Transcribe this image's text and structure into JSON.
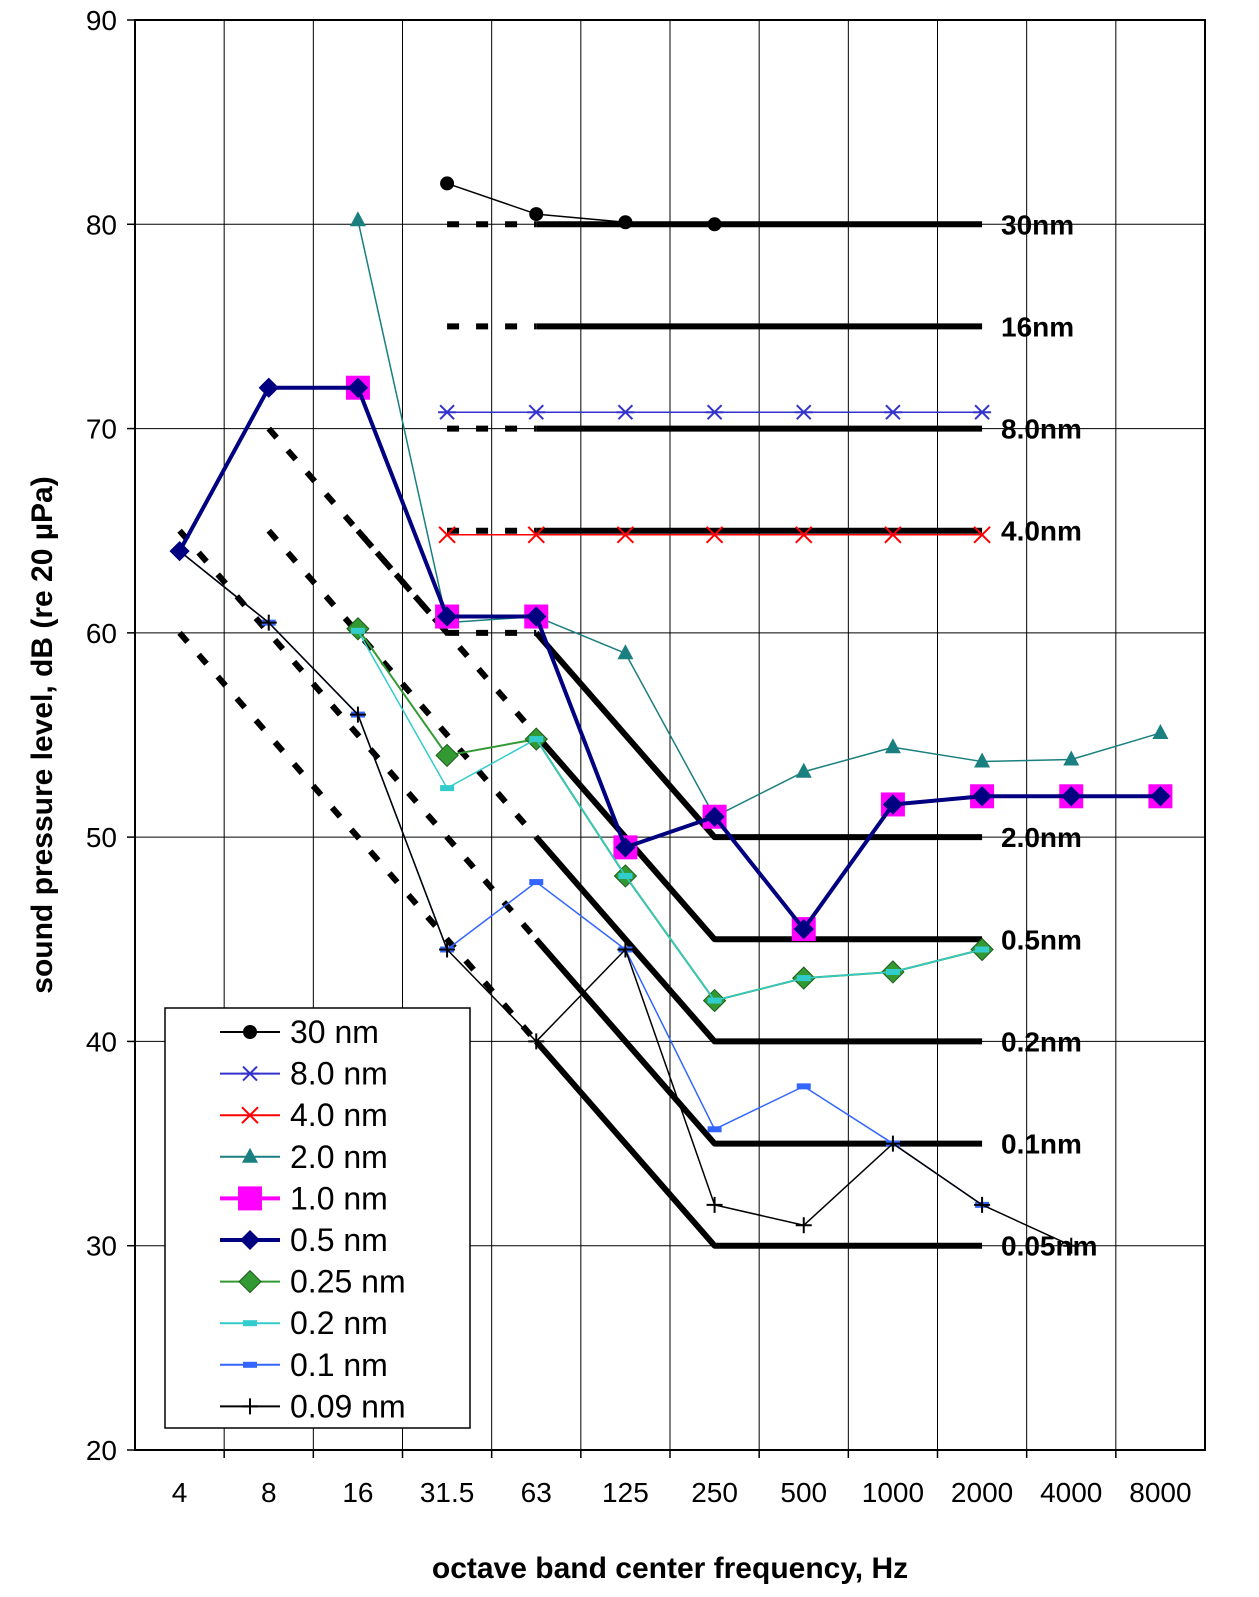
{
  "chart_data": {
    "type": "line",
    "title": "",
    "xlabel": "octave band center frequency, Hz",
    "ylabel": "sound pressure level, dB (re 20 µPa)",
    "ylim": [
      20,
      90
    ],
    "yticks": [
      "20",
      "30",
      "40",
      "50",
      "60",
      "70",
      "80",
      "90"
    ],
    "categories": [
      "4",
      "8",
      "16",
      "31.5",
      "63",
      "125",
      "250",
      "500",
      "1000",
      "2000",
      "4000",
      "8000"
    ],
    "grid": true,
    "legend_position": "bottom-left",
    "series": [
      {
        "name": "30 nm",
        "color": "#000000",
        "marker": "circle",
        "points": [
          [
            3,
            82
          ],
          [
            4,
            80.5
          ],
          [
            5,
            80.1
          ],
          [
            6,
            80
          ]
        ]
      },
      {
        "name": "8.0 nm",
        "color": "#3333cc",
        "marker": "star",
        "points": [
          [
            3,
            70.8
          ],
          [
            4,
            70.8
          ],
          [
            5,
            70.8
          ],
          [
            6,
            70.8
          ],
          [
            7,
            70.8
          ],
          [
            8,
            70.8
          ],
          [
            9,
            70.8
          ]
        ]
      },
      {
        "name": "4.0 nm",
        "color": "#ff0000",
        "marker": "x",
        "points": [
          [
            3,
            64.8
          ],
          [
            4,
            64.8
          ],
          [
            5,
            64.8
          ],
          [
            6,
            64.8
          ],
          [
            7,
            64.8
          ],
          [
            8,
            64.8
          ],
          [
            9,
            64.8
          ]
        ]
      },
      {
        "name": "2.0 nm",
        "color": "#1a7f7f",
        "marker": "triangle",
        "points": [
          [
            2,
            80.2
          ],
          [
            3,
            60.5
          ],
          [
            4,
            60.8
          ],
          [
            5,
            59
          ],
          [
            6,
            51
          ],
          [
            7,
            53.2
          ],
          [
            8,
            54.4
          ],
          [
            9,
            53.7
          ],
          [
            10,
            53.8
          ],
          [
            11,
            55.1
          ]
        ]
      },
      {
        "name": "1.0 nm",
        "color": "#ff00ff",
        "marker": "square-big",
        "points": [
          [
            2,
            72
          ],
          [
            3,
            60.8
          ],
          [
            4,
            60.8
          ],
          [
            5,
            49.5
          ],
          [
            6,
            51
          ],
          [
            7,
            45.5
          ],
          [
            8,
            51.6
          ],
          [
            9,
            52
          ],
          [
            10,
            52
          ],
          [
            11,
            52
          ]
        ]
      },
      {
        "name": "0.5 nm",
        "color": "#000080",
        "marker": "diamond",
        "points": [
          [
            0,
            64
          ],
          [
            1,
            72
          ],
          [
            2,
            72
          ],
          [
            3,
            60.8
          ],
          [
            4,
            60.8
          ],
          [
            5,
            49.5
          ],
          [
            6,
            51
          ],
          [
            7,
            45.5
          ],
          [
            8,
            51.6
          ],
          [
            9,
            52
          ],
          [
            10,
            52
          ],
          [
            11,
            52
          ]
        ]
      },
      {
        "name": "0.25 nm",
        "color": "#339933",
        "marker": "diamond-green",
        "points": [
          [
            2,
            60.2
          ],
          [
            3,
            54
          ],
          [
            4,
            54.8
          ],
          [
            5,
            48.1
          ],
          [
            6,
            42
          ],
          [
            7,
            43.1
          ],
          [
            8,
            43.4
          ],
          [
            9,
            44.5
          ]
        ]
      },
      {
        "name": "0.2 nm",
        "color": "#33cccc",
        "marker": "dash",
        "points": [
          [
            2,
            60.1
          ],
          [
            3,
            52.4
          ],
          [
            4,
            54.8
          ],
          [
            5,
            48.1
          ],
          [
            6,
            42
          ],
          [
            7,
            43.1
          ],
          [
            8,
            43.4
          ],
          [
            9,
            44.5
          ]
        ]
      },
      {
        "name": "0.1 nm",
        "color": "#3366ff",
        "marker": "dash",
        "points": [
          [
            0,
            64
          ],
          [
            1,
            60.5
          ],
          [
            2,
            56
          ],
          [
            3,
            44.5
          ],
          [
            4,
            47.8
          ],
          [
            5,
            44.5
          ],
          [
            6,
            35.7
          ],
          [
            7,
            37.8
          ],
          [
            8,
            35
          ],
          [
            9,
            32
          ]
        ]
      },
      {
        "name": "0.09 nm",
        "color": "#000000",
        "marker": "plus",
        "points": [
          [
            0,
            64
          ],
          [
            1,
            60.5
          ],
          [
            2,
            56
          ],
          [
            3,
            44.5
          ],
          [
            4,
            40
          ],
          [
            5,
            44.5
          ],
          [
            6,
            32
          ],
          [
            7,
            31
          ],
          [
            8,
            35
          ],
          [
            9,
            32
          ],
          [
            10,
            30
          ]
        ]
      }
    ],
    "reference_curves": [
      {
        "label": "30nm",
        "level": 80,
        "slope_start": null
      },
      {
        "label": "16nm",
        "level": 75,
        "slope_start": null
      },
      {
        "label": "8.0nm",
        "level": 70,
        "slope_start": null
      },
      {
        "label": "4.0nm",
        "level": 65,
        "slope_start": null
      },
      {
        "label": "2.0nm",
        "level": 50,
        "slope_start": [
          4,
          60
        ]
      },
      {
        "label": "0.5nm",
        "level": 45,
        "slope_start": [
          4,
          55
        ]
      },
      {
        "label": "0.2nm",
        "level": 40,
        "slope_start": [
          4,
          50
        ]
      },
      {
        "label": "0.1nm",
        "level": 35,
        "slope_start": [
          4,
          45
        ]
      },
      {
        "label": "0.05nm",
        "level": 30,
        "slope_start": [
          4,
          40
        ]
      }
    ],
    "dotted_guides": [
      [
        [
          0,
          60
        ],
        [
          3,
          45
        ],
        [
          4,
          40
        ]
      ],
      [
        [
          0,
          65
        ],
        [
          3,
          50
        ],
        [
          4,
          45
        ]
      ],
      [
        [
          1,
          65
        ],
        [
          4,
          50
        ]
      ],
      [
        [
          1,
          70
        ],
        [
          4,
          55
        ]
      ],
      [
        [
          2,
          65
        ],
        [
          3,
          60
        ]
      ],
      [
        [
          3,
          80
        ],
        [
          4,
          80
        ]
      ],
      [
        [
          3,
          75
        ],
        [
          4,
          75
        ]
      ],
      [
        [
          3,
          70
        ],
        [
          4,
          70
        ]
      ],
      [
        [
          3,
          65
        ],
        [
          4,
          65
        ]
      ],
      [
        [
          3,
          60
        ],
        [
          4,
          60
        ]
      ]
    ]
  }
}
